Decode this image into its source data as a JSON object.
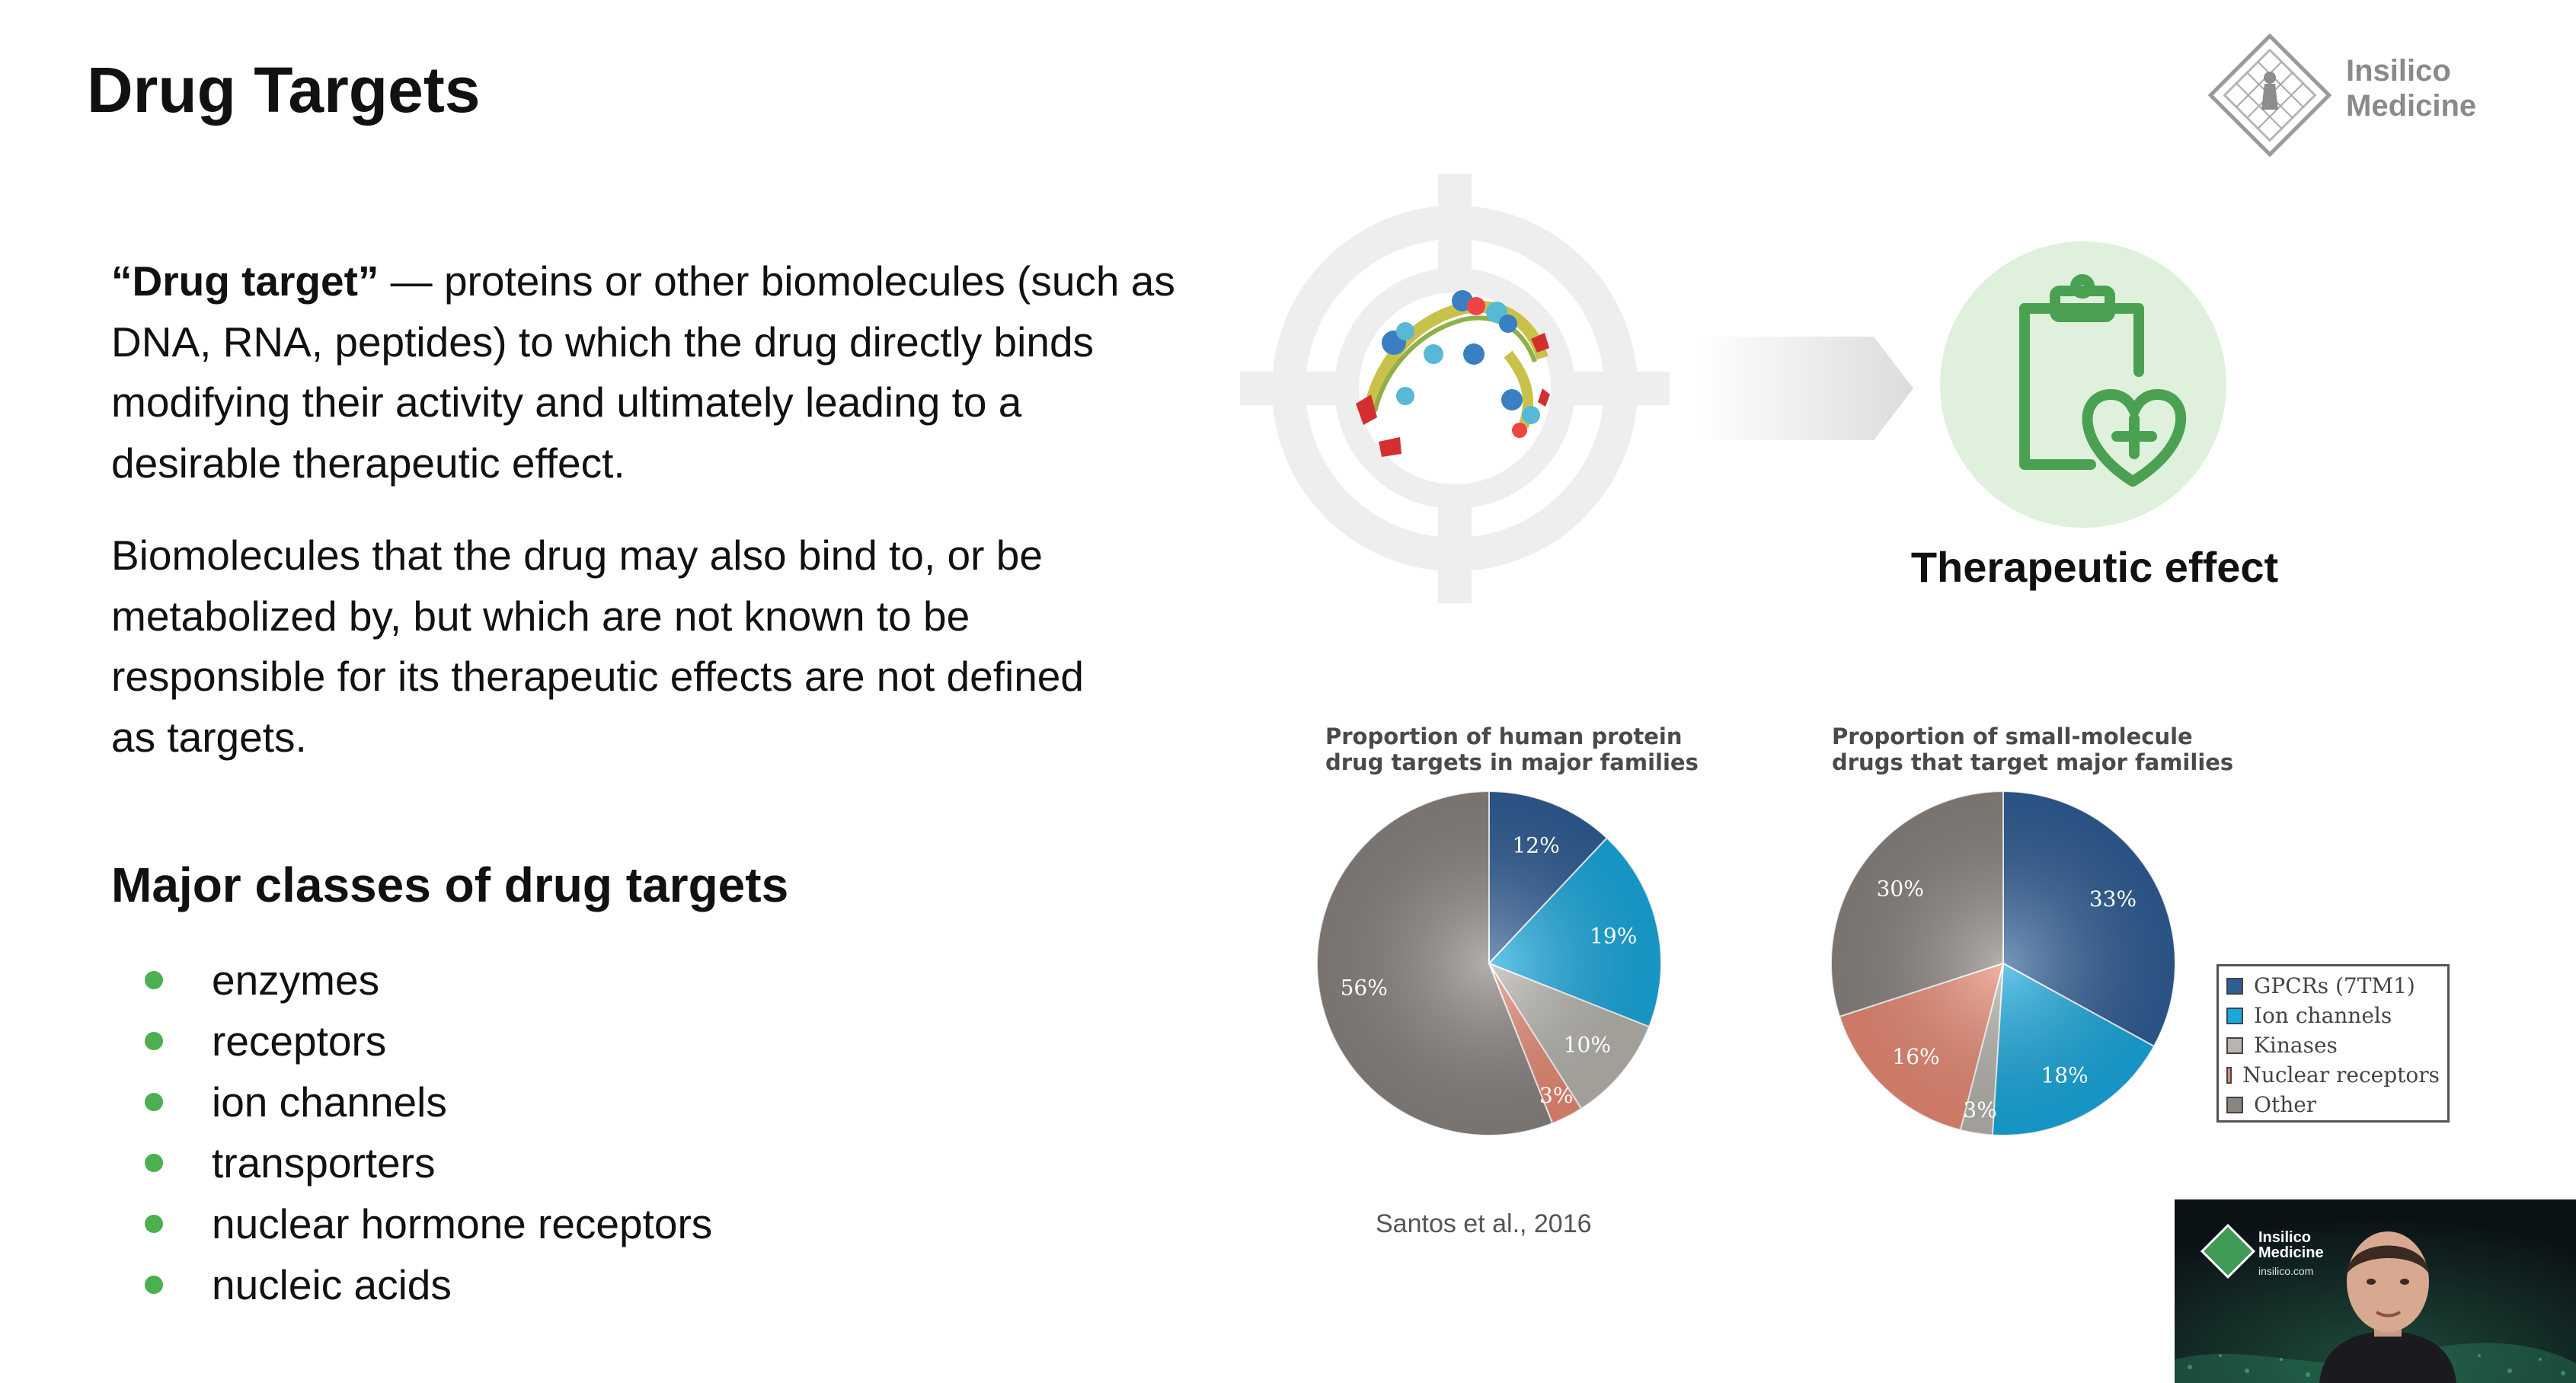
{
  "slide": {
    "title": "Drug Targets",
    "logo_line1": "Insilico",
    "logo_line2": "Medicine"
  },
  "definition": {
    "term": "“Drug target”",
    "dash": " —  ",
    "text": "proteins or other biomolecules (such as DNA, RNA, peptides) to which the drug directly binds modifying their activity and ultimately leading to a desirable therapeutic effect."
  },
  "non_target_note": "Biomolecules that the drug may also bind to, or be metabolized by, but which are not known to be responsible for its therapeutic effects are not defined as targets.",
  "classes": {
    "heading": "Major classes of drug targets",
    "items": [
      "enzymes",
      "receptors",
      "ion channels",
      "transporters",
      "nuclear hormone receptors",
      "nucleic acids"
    ]
  },
  "graphic": {
    "therapeutic_label": "Therapeutic effect",
    "target_icon": "crosshair-target-icon",
    "arrow_icon": "arrow-right-icon",
    "clipboard_icon": "clipboard-heart-icon",
    "accent_green": "#4caf50"
  },
  "chart_data": [
    {
      "type": "pie",
      "title": "Proportion of human protein drug targets in major families",
      "slices": [
        {
          "label": "GPCRs (7TM1)",
          "value": 12,
          "color": "#2f5d95"
        },
        {
          "label": "Ion channels",
          "value": 19,
          "color": "#18a9df"
        },
        {
          "label": "Kinases",
          "value": 10,
          "color": "#b8b5ae"
        },
        {
          "label": "Nuclear receptors",
          "value": 3,
          "color": "#e98a74"
        },
        {
          "label": "Other",
          "value": 56,
          "color": "#8a8480"
        }
      ]
    },
    {
      "type": "pie",
      "title": "Proportion of small-molecule drugs that target major families",
      "slices": [
        {
          "label": "GPCRs (7TM1)",
          "value": 33,
          "color": "#2f5d95"
        },
        {
          "label": "Ion channels",
          "value": 18,
          "color": "#18a9df"
        },
        {
          "label": "Kinases",
          "value": 3,
          "color": "#b8b5ae"
        },
        {
          "label": "Nuclear receptors",
          "value": 16,
          "color": "#e98a74"
        },
        {
          "label": "Other",
          "value": 30,
          "color": "#8a8480"
        }
      ]
    }
  ],
  "legend": {
    "items": [
      {
        "label": "GPCRs (7TM1)",
        "color": "#2f5d95"
      },
      {
        "label": "Ion channels",
        "color": "#18a9df"
      },
      {
        "label": "Kinases",
        "color": "#b8b5ae"
      },
      {
        "label": "Nuclear receptors",
        "color": "#e98a74"
      },
      {
        "label": "Other",
        "color": "#8a8480"
      }
    ]
  },
  "citation": "Santos et al., 2016",
  "video_overlay": {
    "brand_line1": "Insilico",
    "brand_line2": "Medicine",
    "brand_url": "insilico.com"
  }
}
